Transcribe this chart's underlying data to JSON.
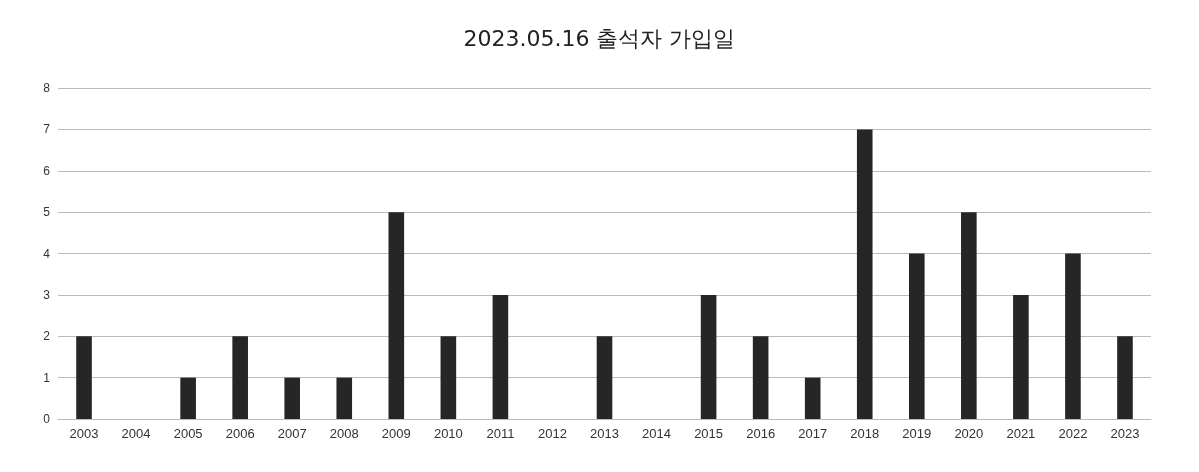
{
  "chart_data": {
    "type": "bar",
    "title": "2023.05.16 출석자 가입일",
    "categories": [
      "2003",
      "2004",
      "2005",
      "2006",
      "2007",
      "2008",
      "2009",
      "2010",
      "2011",
      "2012",
      "2013",
      "2014",
      "2015",
      "2016",
      "2017",
      "2018",
      "2019",
      "2020",
      "2021",
      "2022",
      "2023"
    ],
    "values": [
      2,
      0,
      1,
      2,
      1,
      1,
      5,
      2,
      3,
      0,
      2,
      0,
      3,
      2,
      1,
      7,
      4,
      5,
      3,
      4,
      2
    ],
    "color": "#262626",
    "ylim": [
      0,
      8
    ],
    "yticks": [
      0,
      1,
      2,
      3,
      4,
      5,
      6,
      7,
      8
    ],
    "grid": "y"
  }
}
